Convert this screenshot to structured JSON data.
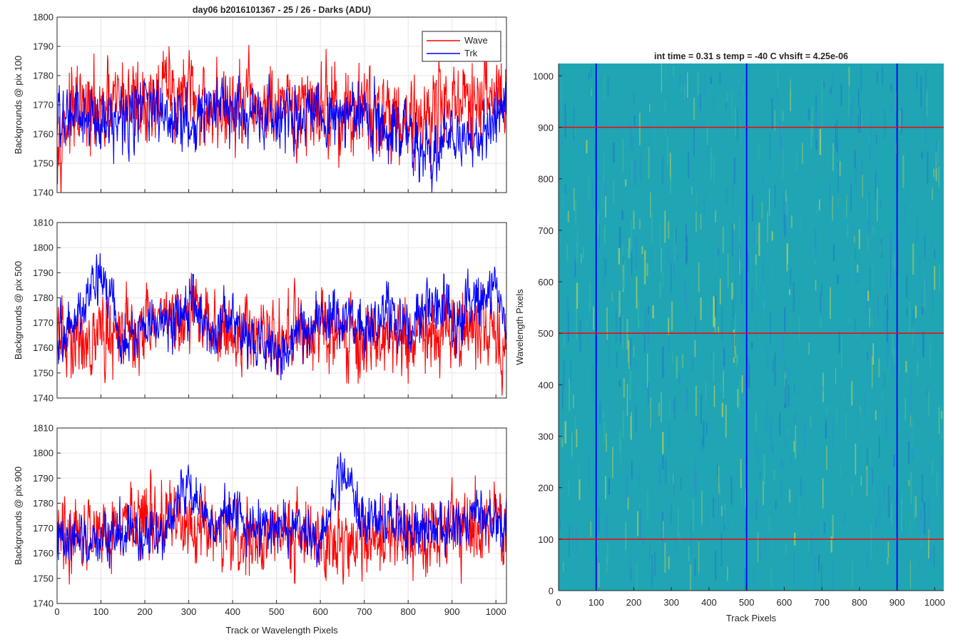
{
  "figure": {
    "title": "day06 b2016101367 - 25 / 26 - Darks (ADU)",
    "xlabel": "Track or Wavelength Pixels"
  },
  "legend": {
    "position": "top-right",
    "items": [
      "Wave",
      "Trk"
    ]
  },
  "colors": {
    "wave": "#ff0000",
    "trk": "#0000ff",
    "grid": "#e6e6e6",
    "axis": "#262626",
    "heat_low": "#1f78c8",
    "heat_mid": "#1fa5b4",
    "heat_high": "#b9d25a"
  },
  "chart_data": [
    {
      "type": "line",
      "ylabel": "Backgrounds @ pix 100",
      "xlim": [
        0,
        1024
      ],
      "ylim": [
        1740,
        1800
      ],
      "xticks": [
        0,
        100,
        200,
        300,
        400,
        500,
        600,
        700,
        800,
        900,
        1000
      ],
      "yticks": [
        1740,
        1750,
        1760,
        1770,
        1780,
        1790,
        1800
      ],
      "series": [
        {
          "name": "Wave",
          "color": "#ff0000",
          "mean": 1767,
          "amp": 7,
          "x": [
            0,
            50,
            100,
            150,
            200,
            250,
            300,
            350,
            400,
            450,
            500,
            550,
            600,
            650,
            700,
            750,
            800,
            850,
            900,
            950,
            1000,
            1024
          ],
          "y": [
            1762,
            1768,
            1765,
            1772,
            1770,
            1775,
            1772,
            1768,
            1768,
            1769,
            1767,
            1766,
            1772,
            1766,
            1768,
            1768,
            1764,
            1768,
            1772,
            1768,
            1775,
            1770
          ]
        },
        {
          "name": "Trk",
          "color": "#0000ff",
          "mean": 1766,
          "amp": 5,
          "x": [
            0,
            50,
            100,
            150,
            200,
            250,
            300,
            350,
            400,
            450,
            500,
            550,
            600,
            650,
            700,
            750,
            800,
            850,
            900,
            950,
            1000,
            1024
          ],
          "y": [
            1764,
            1766,
            1764,
            1766,
            1770,
            1766,
            1765,
            1768,
            1767,
            1768,
            1766,
            1764,
            1765,
            1766,
            1767,
            1764,
            1762,
            1752,
            1762,
            1756,
            1768,
            1770
          ]
        }
      ]
    },
    {
      "type": "line",
      "ylabel": "Backgrounds @ pix 500",
      "xlim": [
        0,
        1024
      ],
      "ylim": [
        1740,
        1810
      ],
      "xticks": [
        0,
        100,
        200,
        300,
        400,
        500,
        600,
        700,
        800,
        900,
        1000
      ],
      "yticks": [
        1740,
        1750,
        1760,
        1770,
        1780,
        1790,
        1800,
        1810
      ],
      "series": [
        {
          "name": "Wave",
          "color": "#ff0000",
          "mean": 1766,
          "amp": 7,
          "x": [
            0,
            50,
            100,
            150,
            200,
            250,
            300,
            350,
            400,
            450,
            500,
            550,
            600,
            650,
            700,
            750,
            800,
            850,
            900,
            950,
            1000,
            1024
          ],
          "y": [
            1764,
            1762,
            1766,
            1765,
            1768,
            1770,
            1774,
            1770,
            1766,
            1766,
            1765,
            1765,
            1768,
            1766,
            1764,
            1765,
            1764,
            1765,
            1768,
            1770,
            1768,
            1760
          ]
        },
        {
          "name": "Trk",
          "color": "#0000ff",
          "mean": 1770,
          "amp": 5,
          "x": [
            0,
            50,
            100,
            150,
            200,
            250,
            300,
            350,
            400,
            450,
            500,
            550,
            600,
            650,
            700,
            750,
            800,
            850,
            900,
            950,
            1000,
            1024
          ],
          "y": [
            1764,
            1772,
            1792,
            1762,
            1768,
            1770,
            1776,
            1768,
            1772,
            1764,
            1758,
            1766,
            1772,
            1770,
            1768,
            1776,
            1766,
            1780,
            1772,
            1776,
            1786,
            1772
          ]
        }
      ]
    },
    {
      "type": "line",
      "ylabel": "Backgrounds @ pix 900",
      "xlim": [
        0,
        1024
      ],
      "ylim": [
        1740,
        1810
      ],
      "xticks": [
        0,
        100,
        200,
        300,
        400,
        500,
        600,
        700,
        800,
        900,
        1000
      ],
      "xticklabels": [
        "0",
        "100",
        "200",
        "300",
        "400",
        "500",
        "600",
        "700",
        "800",
        "900",
        "1000"
      ],
      "yticks": [
        1740,
        1750,
        1760,
        1770,
        1780,
        1790,
        1800,
        1810
      ],
      "series": [
        {
          "name": "Wave",
          "color": "#ff0000",
          "mean": 1767,
          "amp": 7,
          "x": [
            0,
            50,
            100,
            150,
            200,
            250,
            300,
            350,
            400,
            450,
            500,
            550,
            600,
            650,
            700,
            750,
            800,
            850,
            900,
            950,
            1000,
            1024
          ],
          "y": [
            1766,
            1768,
            1770,
            1772,
            1773,
            1776,
            1772,
            1770,
            1766,
            1770,
            1768,
            1766,
            1766,
            1764,
            1764,
            1766,
            1766,
            1768,
            1770,
            1772,
            1774,
            1770
          ]
        },
        {
          "name": "Trk",
          "color": "#0000ff",
          "mean": 1768,
          "amp": 5,
          "x": [
            0,
            50,
            100,
            150,
            200,
            250,
            300,
            350,
            400,
            450,
            500,
            550,
            600,
            650,
            700,
            750,
            800,
            850,
            900,
            950,
            1000,
            1024
          ],
          "y": [
            1762,
            1764,
            1766,
            1768,
            1768,
            1770,
            1790,
            1772,
            1776,
            1768,
            1770,
            1772,
            1766,
            1796,
            1770,
            1776,
            1766,
            1772,
            1768,
            1778,
            1772,
            1768
          ]
        }
      ]
    },
    {
      "type": "heatmap",
      "title": "int time = 0.31 s    temp = -40 C    vhsift = 4.25e-06",
      "xlabel": "Track Pixels",
      "ylabel": "Wavelength Pixels",
      "xlim": [
        0,
        1024
      ],
      "ylim": [
        0,
        1024
      ],
      "xticks": [
        0,
        100,
        200,
        300,
        400,
        500,
        600,
        700,
        800,
        900,
        1000
      ],
      "yticks": [
        0,
        100,
        200,
        300,
        400,
        500,
        600,
        700,
        800,
        900,
        1000
      ],
      "vertical_lines": {
        "x": [
          100,
          500,
          900
        ],
        "color": "#0000ff"
      },
      "horizontal_lines": {
        "y": [
          100,
          500,
          900
        ],
        "color": "#ff0000"
      }
    }
  ]
}
